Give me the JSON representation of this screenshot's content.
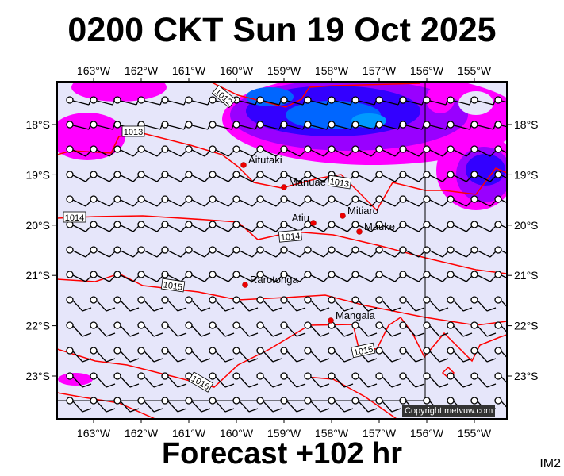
{
  "title": "0200 CKT Sun 19 Oct 2025",
  "footer": "Forecast +102 hr",
  "image_code": "IM2",
  "copyright": "Copyright metvuw.com",
  "lon_labels": [
    "163°W",
    "162°W",
    "161°W",
    "160°W",
    "159°W",
    "158°W",
    "157°W",
    "156°W",
    "155°W"
  ],
  "lat_labels": [
    "18°S",
    "19°S",
    "20°S",
    "21°S",
    "22°S",
    "23°S"
  ],
  "places": [
    "Aitutaki",
    "Manuae",
    "Atiu",
    "Mitiaro",
    "Mauke",
    "Rarotonga",
    "Mangaia"
  ],
  "isobar_labels": [
    "1012",
    "1013",
    "1013",
    "1014",
    "1014",
    "1015",
    "1015",
    "1016"
  ],
  "colors": {
    "background": "#e6e6fa",
    "isobar": "#ff0000",
    "rain_light": "#ff00ff",
    "rain_mid": "#9900ff",
    "rain_heavy": "#0000ff",
    "rain_max": "#0088ff"
  }
}
